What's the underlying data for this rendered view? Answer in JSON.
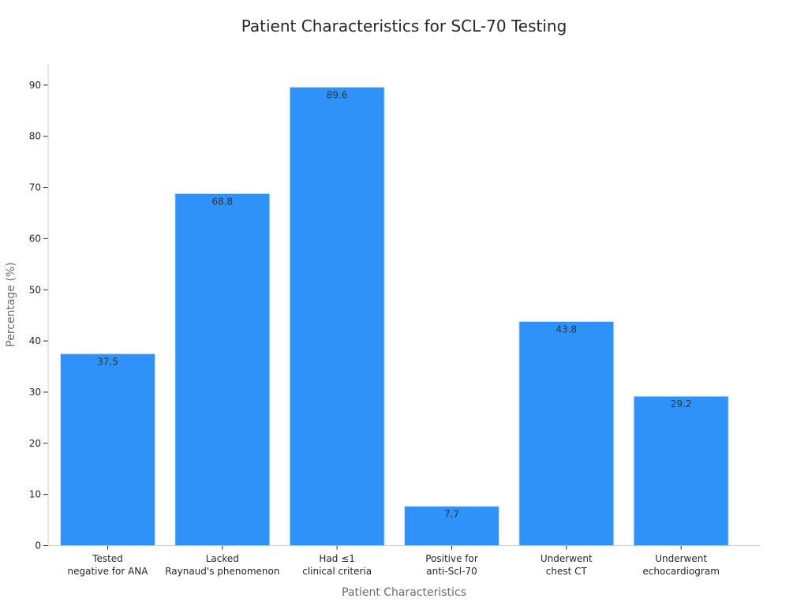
{
  "chart_data": {
    "type": "bar",
    "title": "Patient Characteristics for SCL-70 Testing",
    "xlabel": "Patient Characteristics",
    "ylabel": "Percentage (%)",
    "ylim": [
      0,
      94
    ],
    "yticks": [
      0,
      10,
      20,
      30,
      40,
      50,
      60,
      70,
      80,
      90
    ],
    "categories": [
      [
        "Tested",
        "negative for ANA"
      ],
      [
        "Lacked",
        "Raynaud's phenomenon"
      ],
      [
        "Had ≤1",
        "clinical criteria"
      ],
      [
        "Positive for",
        "anti-Scl-70"
      ],
      [
        "Underwent",
        "chest CT"
      ],
      [
        "Underwent",
        "echocardiogram"
      ]
    ],
    "values": [
      37.5,
      68.8,
      89.6,
      7.7,
      43.8,
      29.2
    ],
    "value_labels": [
      "37.5",
      "68.8",
      "89.6",
      "7.7",
      "43.8",
      "29.2"
    ],
    "bar_color": "#2f92f8",
    "grid": false,
    "legend": "none"
  }
}
